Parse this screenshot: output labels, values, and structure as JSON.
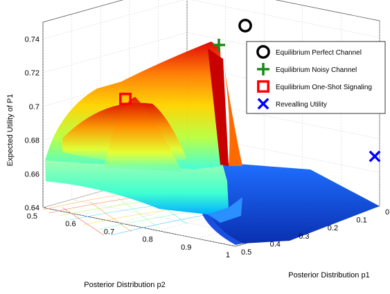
{
  "chart_data": {
    "type": "surface3d",
    "title": "",
    "xlabel": "Posterior Distribution p1",
    "ylabel": "Posterior Distribution p2",
    "zlabel": "Expected Utility of P1",
    "p1_ticks": [
      "0",
      "0.1",
      "0.2",
      "0.3",
      "0.4",
      "0.5"
    ],
    "p2_ticks": [
      "0.5",
      "0.6",
      "0.7",
      "0.8",
      "0.9",
      "1"
    ],
    "z_ticks": [
      "0.64",
      "0.66",
      "0.68",
      "0.7",
      "0.72",
      "0.74"
    ],
    "p1_range": [
      0,
      0.5
    ],
    "p2_range": [
      0.5,
      1
    ],
    "z_range": [
      0.64,
      0.75
    ],
    "grid": true,
    "legend_position": "top-right",
    "legend": [
      {
        "label": "Equilibrium Perfect Channel",
        "marker": "circle",
        "color": "#000000"
      },
      {
        "label": "Equilibrium Noisy Channel",
        "marker": "plus",
        "color": "#1a8a1a"
      },
      {
        "label": "Equilibrium One-Shot Signaling",
        "marker": "square",
        "color": "#ff0000"
      },
      {
        "label": "Revealling Utility",
        "marker": "x",
        "color": "#0000ff"
      }
    ],
    "points": [
      {
        "series": "Equilibrium Perfect Channel",
        "p1": 0.0,
        "p2": 0.55,
        "z": 0.755
      },
      {
        "series": "Equilibrium Noisy Channel",
        "p1": 0.13,
        "p2": 0.5,
        "z": 0.745
      },
      {
        "series": "Equilibrium One-Shot Signaling",
        "p1": 0.25,
        "p2": 0.5,
        "z": 0.722
      },
      {
        "series": "Revealling Utility",
        "p1": 0.0,
        "p2": 0.95,
        "z": 0.69
      }
    ]
  }
}
